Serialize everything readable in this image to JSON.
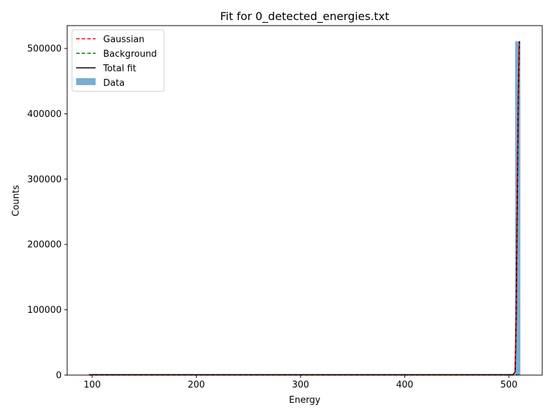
{
  "chart_data": {
    "type": "histogram",
    "title": "Fit for 0_detected_energies.txt",
    "xlabel": "Energy",
    "ylabel": "Counts",
    "xlim": [
      76,
      532
    ],
    "ylim": [
      0,
      535000
    ],
    "xticks": [
      100,
      200,
      300,
      400,
      500
    ],
    "yticks": [
      0,
      100000,
      200000,
      300000,
      400000,
      500000
    ],
    "grid": false,
    "legend_position": "upper-left",
    "legend": [
      {
        "label": "Gaussian",
        "style": "dashed",
        "color": "#ff0000"
      },
      {
        "label": "Background",
        "style": "dashed",
        "color": "#008000"
      },
      {
        "label": "Total fit",
        "style": "solid",
        "color": "#000000"
      },
      {
        "label": "Data",
        "style": "patch",
        "color": "#1f77b4"
      }
    ],
    "bars": [
      {
        "x0": 506,
        "x1": 511,
        "value": 511000
      }
    ],
    "background_level": 500,
    "fit": {
      "x": [
        97,
        200,
        300,
        400,
        504,
        506,
        507,
        508,
        509,
        510
      ],
      "total": [
        500,
        500,
        500,
        500,
        500,
        5000,
        90000,
        260000,
        420000,
        511000
      ],
      "gaussian": [
        0,
        0,
        0,
        0,
        0,
        4500,
        89500,
        259500,
        419500,
        510500
      ]
    }
  }
}
